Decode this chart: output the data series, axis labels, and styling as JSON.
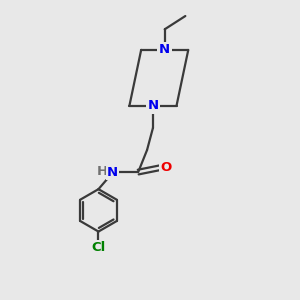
{
  "background_color": "#e8e8e8",
  "bond_color": "#3a3a3a",
  "N_color": "#0000ee",
  "O_color": "#ee0000",
  "Cl_color": "#008000",
  "H_color": "#707070",
  "line_width": 1.6,
  "figsize": [
    3.0,
    3.0
  ],
  "dpi": 100,
  "xlim": [
    0,
    10
  ],
  "ylim": [
    0,
    10
  ]
}
